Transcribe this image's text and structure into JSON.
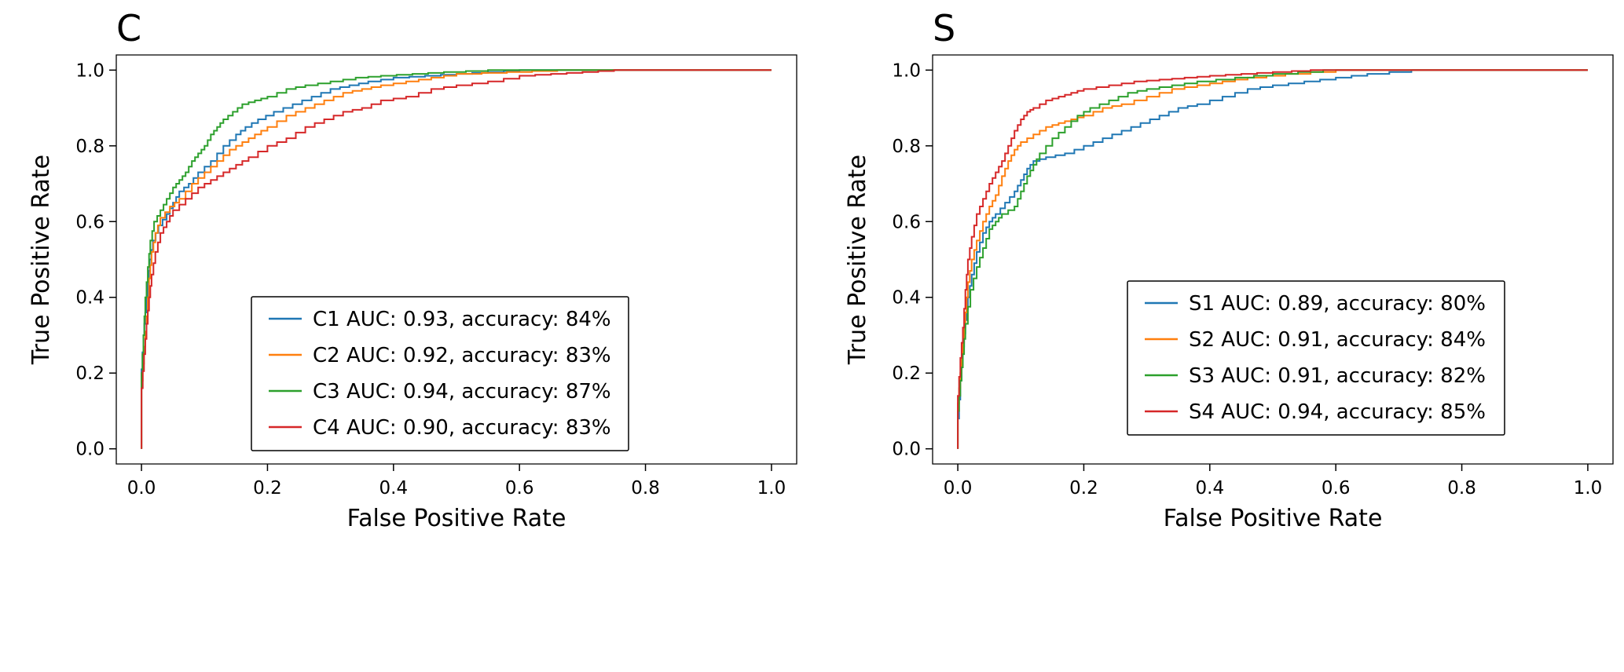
{
  "figure": {
    "background": "#ffffff",
    "text_color": "#000000"
  },
  "chart_data": [
    {
      "id": "C",
      "type": "line",
      "title": "C",
      "panel_label": "C",
      "xlabel": "False Positive Rate",
      "ylabel": "True Positive Rate",
      "xlim": [
        -0.04,
        1.04
      ],
      "ylim": [
        -0.04,
        1.04
      ],
      "xticks": [
        0.0,
        0.2,
        0.4,
        0.6,
        0.8,
        1.0
      ],
      "yticks": [
        0.0,
        0.2,
        0.4,
        0.6,
        0.8,
        1.0
      ],
      "xtick_labels": [
        "0.0",
        "0.2",
        "0.4",
        "0.6",
        "0.8",
        "1.0"
      ],
      "ytick_labels": [
        "0.0",
        "0.2",
        "0.4",
        "0.6",
        "0.8",
        "1.0"
      ],
      "grid": false,
      "legend_position": "lower right inside",
      "series": [
        {
          "name": "C1",
          "auc": 0.93,
          "accuracy": "84%",
          "legend_label": "C1 AUC: 0.93, accuracy: 84%",
          "color": "#1f77b4",
          "points": [
            [
              0,
              0
            ],
            [
              0,
              0.21
            ],
            [
              0.003,
              0.3
            ],
            [
              0.006,
              0.36
            ],
            [
              0.01,
              0.44
            ],
            [
              0.013,
              0.5
            ],
            [
              0.018,
              0.55
            ],
            [
              0.027,
              0.59
            ],
            [
              0.04,
              0.62
            ],
            [
              0.05,
              0.65
            ],
            [
              0.06,
              0.68
            ],
            [
              0.075,
              0.7
            ],
            [
              0.09,
              0.73
            ],
            [
              0.11,
              0.76
            ],
            [
              0.13,
              0.8
            ],
            [
              0.15,
              0.83
            ],
            [
              0.165,
              0.85
            ],
            [
              0.185,
              0.87
            ],
            [
              0.21,
              0.89
            ],
            [
              0.24,
              0.91
            ],
            [
              0.27,
              0.93
            ],
            [
              0.3,
              0.95
            ],
            [
              0.33,
              0.96
            ],
            [
              0.36,
              0.97
            ],
            [
              0.4,
              0.98
            ],
            [
              0.45,
              0.985
            ],
            [
              0.5,
              0.99
            ],
            [
              0.55,
              0.995
            ],
            [
              0.6,
              1.0
            ],
            [
              1.0,
              1.0
            ]
          ]
        },
        {
          "name": "C2",
          "auc": 0.92,
          "accuracy": "83%",
          "legend_label": "C2 AUC: 0.92, accuracy: 83%",
          "color": "#ff7f0e",
          "points": [
            [
              0,
              0
            ],
            [
              0,
              0.18
            ],
            [
              0.004,
              0.27
            ],
            [
              0.008,
              0.35
            ],
            [
              0.012,
              0.45
            ],
            [
              0.016,
              0.52
            ],
            [
              0.022,
              0.57
            ],
            [
              0.03,
              0.61
            ],
            [
              0.045,
              0.64
            ],
            [
              0.06,
              0.66
            ],
            [
              0.08,
              0.7
            ],
            [
              0.1,
              0.73
            ],
            [
              0.12,
              0.76
            ],
            [
              0.14,
              0.79
            ],
            [
              0.16,
              0.81
            ],
            [
              0.18,
              0.83
            ],
            [
              0.2,
              0.85
            ],
            [
              0.23,
              0.88
            ],
            [
              0.26,
              0.9
            ],
            [
              0.29,
              0.92
            ],
            [
              0.32,
              0.94
            ],
            [
              0.35,
              0.95
            ],
            [
              0.38,
              0.96
            ],
            [
              0.42,
              0.97
            ],
            [
              0.46,
              0.98
            ],
            [
              0.5,
              0.99
            ],
            [
              0.58,
              0.995
            ],
            [
              0.66,
              1.0
            ],
            [
              1.0,
              1.0
            ]
          ]
        },
        {
          "name": "C3",
          "auc": 0.94,
          "accuracy": "87%",
          "legend_label": "C3 AUC: 0.94, accuracy: 87%",
          "color": "#2ca02c",
          "points": [
            [
              0,
              0
            ],
            [
              0,
              0.2
            ],
            [
              0.003,
              0.3
            ],
            [
              0.006,
              0.4
            ],
            [
              0.01,
              0.48
            ],
            [
              0.014,
              0.55
            ],
            [
              0.02,
              0.6
            ],
            [
              0.03,
              0.63
            ],
            [
              0.04,
              0.66
            ],
            [
              0.05,
              0.69
            ],
            [
              0.06,
              0.71
            ],
            [
              0.07,
              0.73
            ],
            [
              0.08,
              0.76
            ],
            [
              0.09,
              0.78
            ],
            [
              0.1,
              0.8
            ],
            [
              0.11,
              0.83
            ],
            [
              0.12,
              0.85
            ],
            [
              0.13,
              0.87
            ],
            [
              0.145,
              0.89
            ],
            [
              0.16,
              0.91
            ],
            [
              0.18,
              0.92
            ],
            [
              0.2,
              0.93
            ],
            [
              0.23,
              0.95
            ],
            [
              0.26,
              0.96
            ],
            [
              0.3,
              0.97
            ],
            [
              0.34,
              0.98
            ],
            [
              0.38,
              0.985
            ],
            [
              0.43,
              0.99
            ],
            [
              0.48,
              0.995
            ],
            [
              0.55,
              1.0
            ],
            [
              1.0,
              1.0
            ]
          ]
        },
        {
          "name": "C4",
          "auc": 0.9,
          "accuracy": "83%",
          "legend_label": "C4 AUC: 0.90, accuracy: 83%",
          "color": "#d62728",
          "points": [
            [
              0,
              0
            ],
            [
              0,
              0.16
            ],
            [
              0.004,
              0.25
            ],
            [
              0.008,
              0.33
            ],
            [
              0.012,
              0.4
            ],
            [
              0.016,
              0.46
            ],
            [
              0.022,
              0.52
            ],
            [
              0.03,
              0.57
            ],
            [
              0.04,
              0.6
            ],
            [
              0.05,
              0.63
            ],
            [
              0.07,
              0.66
            ],
            [
              0.09,
              0.69
            ],
            [
              0.11,
              0.71
            ],
            [
              0.13,
              0.73
            ],
            [
              0.15,
              0.75
            ],
            [
              0.17,
              0.77
            ],
            [
              0.2,
              0.8
            ],
            [
              0.23,
              0.82
            ],
            [
              0.26,
              0.85
            ],
            [
              0.29,
              0.87
            ],
            [
              0.32,
              0.89
            ],
            [
              0.35,
              0.9
            ],
            [
              0.38,
              0.92
            ],
            [
              0.42,
              0.93
            ],
            [
              0.46,
              0.95
            ],
            [
              0.5,
              0.96
            ],
            [
              0.55,
              0.97
            ],
            [
              0.6,
              0.985
            ],
            [
              0.65,
              0.99
            ],
            [
              0.7,
              0.995
            ],
            [
              0.75,
              1.0
            ],
            [
              1.0,
              1.0
            ]
          ]
        }
      ]
    },
    {
      "id": "S",
      "type": "line",
      "title": "S",
      "panel_label": "S",
      "xlabel": "False Positive Rate",
      "ylabel": "True Positive Rate",
      "xlim": [
        -0.04,
        1.04
      ],
      "ylim": [
        -0.04,
        1.04
      ],
      "xticks": [
        0.0,
        0.2,
        0.4,
        0.6,
        0.8,
        1.0
      ],
      "yticks": [
        0.0,
        0.2,
        0.4,
        0.6,
        0.8,
        1.0
      ],
      "xtick_labels": [
        "0.0",
        "0.2",
        "0.4",
        "0.6",
        "0.8",
        "1.0"
      ],
      "ytick_labels": [
        "0.0",
        "0.2",
        "0.4",
        "0.6",
        "0.8",
        "1.0"
      ],
      "grid": false,
      "legend_position": "lower right inside",
      "series": [
        {
          "name": "S1",
          "auc": 0.89,
          "accuracy": "80%",
          "legend_label": "S1 AUC: 0.89, accuracy: 80%",
          "color": "#1f77b4",
          "points": [
            [
              0,
              0
            ],
            [
              0,
              0.08
            ],
            [
              0.004,
              0.18
            ],
            [
              0.008,
              0.27
            ],
            [
              0.012,
              0.34
            ],
            [
              0.016,
              0.4
            ],
            [
              0.022,
              0.46
            ],
            [
              0.03,
              0.52
            ],
            [
              0.04,
              0.57
            ],
            [
              0.05,
              0.6
            ],
            [
              0.06,
              0.62
            ],
            [
              0.075,
              0.65
            ],
            [
              0.09,
              0.68
            ],
            [
              0.1,
              0.71
            ],
            [
              0.11,
              0.74
            ],
            [
              0.12,
              0.76
            ],
            [
              0.14,
              0.77
            ],
            [
              0.17,
              0.78
            ],
            [
              0.2,
              0.8
            ],
            [
              0.23,
              0.82
            ],
            [
              0.26,
              0.84
            ],
            [
              0.29,
              0.86
            ],
            [
              0.32,
              0.88
            ],
            [
              0.35,
              0.9
            ],
            [
              0.38,
              0.91
            ],
            [
              0.42,
              0.93
            ],
            [
              0.46,
              0.95
            ],
            [
              0.5,
              0.96
            ],
            [
              0.55,
              0.97
            ],
            [
              0.6,
              0.98
            ],
            [
              0.65,
              0.99
            ],
            [
              0.72,
              1.0
            ],
            [
              1.0,
              1.0
            ]
          ]
        },
        {
          "name": "S2",
          "auc": 0.91,
          "accuracy": "84%",
          "legend_label": "S2 AUC: 0.91, accuracy: 84%",
          "color": "#ff7f0e",
          "points": [
            [
              0,
              0
            ],
            [
              0,
              0.12
            ],
            [
              0.004,
              0.2
            ],
            [
              0.008,
              0.28
            ],
            [
              0.012,
              0.36
            ],
            [
              0.016,
              0.44
            ],
            [
              0.022,
              0.5
            ],
            [
              0.03,
              0.55
            ],
            [
              0.04,
              0.6
            ],
            [
              0.05,
              0.64
            ],
            [
              0.06,
              0.67
            ],
            [
              0.07,
              0.72
            ],
            [
              0.08,
              0.76
            ],
            [
              0.09,
              0.79
            ],
            [
              0.1,
              0.81
            ],
            [
              0.12,
              0.83
            ],
            [
              0.14,
              0.85
            ],
            [
              0.16,
              0.86
            ],
            [
              0.18,
              0.87
            ],
            [
              0.2,
              0.88
            ],
            [
              0.23,
              0.9
            ],
            [
              0.26,
              0.91
            ],
            [
              0.3,
              0.93
            ],
            [
              0.34,
              0.95
            ],
            [
              0.38,
              0.96
            ],
            [
              0.42,
              0.97
            ],
            [
              0.46,
              0.98
            ],
            [
              0.52,
              0.99
            ],
            [
              0.6,
              1.0
            ],
            [
              1.0,
              1.0
            ]
          ]
        },
        {
          "name": "S3",
          "auc": 0.91,
          "accuracy": "82%",
          "legend_label": "S3 AUC: 0.91, accuracy: 82%",
          "color": "#2ca02c",
          "points": [
            [
              0,
              0
            ],
            [
              0,
              0.1
            ],
            [
              0.004,
              0.18
            ],
            [
              0.008,
              0.25
            ],
            [
              0.012,
              0.33
            ],
            [
              0.02,
              0.42
            ],
            [
              0.03,
              0.48
            ],
            [
              0.04,
              0.53
            ],
            [
              0.05,
              0.58
            ],
            [
              0.06,
              0.6
            ],
            [
              0.07,
              0.62
            ],
            [
              0.09,
              0.64
            ],
            [
              0.1,
              0.68
            ],
            [
              0.11,
              0.72
            ],
            [
              0.12,
              0.75
            ],
            [
              0.13,
              0.78
            ],
            [
              0.15,
              0.82
            ],
            [
              0.17,
              0.85
            ],
            [
              0.19,
              0.88
            ],
            [
              0.21,
              0.9
            ],
            [
              0.24,
              0.92
            ],
            [
              0.27,
              0.94
            ],
            [
              0.3,
              0.95
            ],
            [
              0.34,
              0.96
            ],
            [
              0.38,
              0.97
            ],
            [
              0.44,
              0.98
            ],
            [
              0.5,
              0.99
            ],
            [
              0.58,
              1.0
            ],
            [
              1.0,
              1.0
            ]
          ]
        },
        {
          "name": "S4",
          "auc": 0.94,
          "accuracy": "85%",
          "legend_label": "S4 AUC: 0.94, accuracy: 85%",
          "color": "#d62728",
          "points": [
            [
              0,
              0
            ],
            [
              0,
              0.14
            ],
            [
              0.004,
              0.24
            ],
            [
              0.008,
              0.32
            ],
            [
              0.012,
              0.42
            ],
            [
              0.016,
              0.5
            ],
            [
              0.022,
              0.56
            ],
            [
              0.03,
              0.62
            ],
            [
              0.04,
              0.66
            ],
            [
              0.05,
              0.7
            ],
            [
              0.06,
              0.73
            ],
            [
              0.07,
              0.76
            ],
            [
              0.08,
              0.8
            ],
            [
              0.09,
              0.84
            ],
            [
              0.1,
              0.87
            ],
            [
              0.11,
              0.89
            ],
            [
              0.12,
              0.9
            ],
            [
              0.14,
              0.92
            ],
            [
              0.16,
              0.93
            ],
            [
              0.18,
              0.94
            ],
            [
              0.2,
              0.95
            ],
            [
              0.24,
              0.96
            ],
            [
              0.28,
              0.97
            ],
            [
              0.32,
              0.975
            ],
            [
              0.36,
              0.98
            ],
            [
              0.4,
              0.985
            ],
            [
              0.45,
              0.99
            ],
            [
              0.5,
              0.995
            ],
            [
              0.56,
              1.0
            ],
            [
              1.0,
              1.0
            ]
          ]
        }
      ]
    }
  ]
}
